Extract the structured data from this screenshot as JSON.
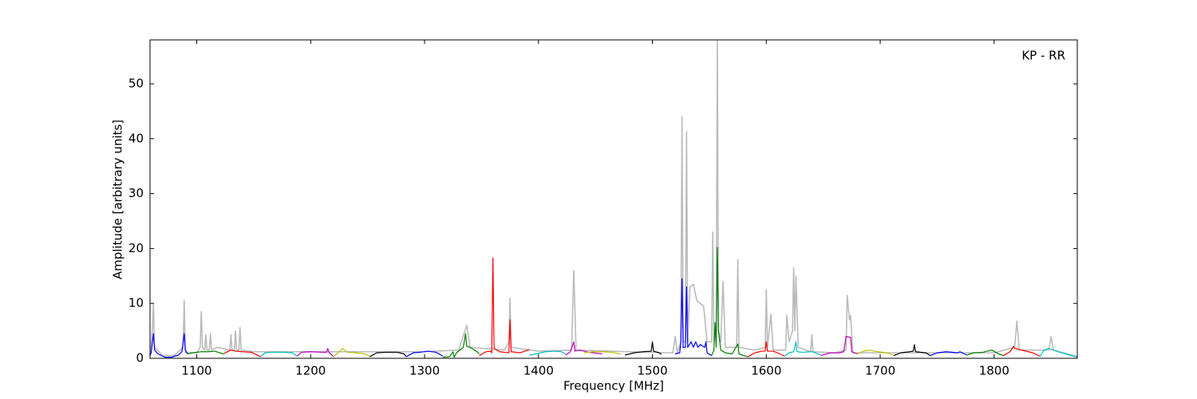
{
  "chart_data": {
    "type": "line",
    "xlabel": "Frequency [MHz]",
    "ylabel": "Amplitude [arbitrary units]",
    "annotation": "KP - RR",
    "xlim": [
      1059,
      1873
    ],
    "ylim": [
      0,
      58
    ],
    "xticks": [
      1100,
      1200,
      1300,
      1400,
      1500,
      1600,
      1700,
      1800
    ],
    "yticks": [
      0,
      10,
      20,
      30,
      40,
      50
    ],
    "series": [
      {
        "color": "#bbbbbb",
        "x": [
          1059,
          1061,
          1062,
          1063,
          1070,
          1080,
          1088,
          1089,
          1090,
          1100,
          1103,
          1104,
          1105,
          1107,
          1108,
          1109,
          1111,
          1112,
          1113,
          1118,
          1129,
          1130,
          1131,
          1133,
          1134,
          1135,
          1137,
          1138,
          1139,
          1150,
          1200,
          1250,
          1300,
          1330,
          1337,
          1340,
          1370,
          1374,
          1375,
          1376,
          1400,
          1429,
          1431,
          1433,
          1480,
          1518,
          1520,
          1522,
          1525,
          1526,
          1527,
          1529,
          1530,
          1531,
          1533,
          1536,
          1539,
          1542,
          1545,
          1548,
          1552,
          1553,
          1554,
          1556,
          1557,
          1558,
          1560,
          1562,
          1564,
          1574,
          1575,
          1576,
          1590,
          1599,
          1600,
          1601,
          1604,
          1606,
          1617,
          1618,
          1620,
          1623,
          1624,
          1625,
          1626,
          1628,
          1639,
          1640,
          1641,
          1660,
          1670,
          1671,
          1673,
          1674,
          1676,
          1700,
          1800,
          1818,
          1820,
          1822,
          1848,
          1850,
          1852,
          1873
        ],
        "values": [
          1,
          5,
          10,
          2,
          0.5,
          0.5,
          2,
          10.5,
          1,
          1,
          2,
          8.5,
          2,
          1.5,
          4.3,
          1.5,
          1.5,
          4.5,
          1.5,
          2,
          1.5,
          4.3,
          1.5,
          1.5,
          5,
          1.5,
          1.5,
          5.6,
          1.5,
          1.2,
          1.2,
          1.2,
          1.2,
          1.5,
          6,
          2,
          1.5,
          3,
          11,
          2,
          1.3,
          1.5,
          16,
          1.5,
          1.2,
          1,
          4,
          1,
          3,
          44,
          3,
          3,
          41.3,
          3,
          13,
          13.5,
          10.5,
          10,
          9.5,
          3,
          3,
          23,
          3,
          5,
          58,
          5,
          3,
          14,
          2,
          2,
          18,
          2,
          1.5,
          2,
          12.5,
          2,
          8,
          1.5,
          1.5,
          7.8,
          3,
          5,
          16.5,
          5,
          15,
          2,
          1.2,
          4.3,
          1.2,
          1,
          1.5,
          11.5,
          7,
          7.8,
          1,
          1,
          1,
          2,
          6.8,
          1.5,
          1.5,
          4,
          1.5,
          0.3
        ]
      },
      {
        "color": "#0000ff",
        "x": [
          1059,
          1060,
          1062,
          1063,
          1066,
          1072,
          1078,
          1084,
          1087,
          1089,
          1090,
          1092
        ],
        "values": [
          0.5,
          1,
          4.5,
          1.5,
          0.8,
          0.2,
          0.2,
          0.6,
          1.2,
          4.5,
          1.5,
          0.8
        ]
      },
      {
        "color": "#008000",
        "x": [
          1092,
          1096,
          1100,
          1104,
          1110,
          1116,
          1120,
          1124
        ],
        "values": [
          0.8,
          1,
          1.1,
          1.2,
          1.2,
          1.3,
          1,
          0.8
        ]
      },
      {
        "color": "#ff0000",
        "x": [
          1124,
          1128,
          1130,
          1134,
          1140,
          1148,
          1154,
          1156
        ],
        "values": [
          0.9,
          1.3,
          1.5,
          1.3,
          1.2,
          1.1,
          0.5,
          0.3
        ]
      },
      {
        "color": "#00bfbf",
        "x": [
          1156,
          1160,
          1166,
          1176,
          1184,
          1188
        ],
        "values": [
          0.3,
          1,
          1.1,
          1.1,
          1,
          0.4
        ]
      },
      {
        "color": "#bf00bf",
        "x": [
          1188,
          1192,
          1200,
          1210,
          1214,
          1215,
          1216,
          1220
        ],
        "values": [
          0.4,
          1.1,
          1.2,
          1.1,
          1.1,
          1.8,
          1.1,
          0.3
        ]
      },
      {
        "color": "#bfbf00",
        "x": [
          1220,
          1224,
          1228,
          1232,
          1240,
          1248,
          1252
        ],
        "values": [
          0.3,
          1,
          1.8,
          1.1,
          1,
          0.8,
          0.3
        ]
      },
      {
        "color": "#000000",
        "x": [
          1252,
          1258,
          1266,
          1276,
          1282,
          1284
        ],
        "values": [
          0.3,
          1,
          1.1,
          1.1,
          0.8,
          0.3
        ]
      },
      {
        "color": "#0000ff",
        "x": [
          1284,
          1290,
          1296,
          1303,
          1310,
          1316
        ],
        "values": [
          0.3,
          1,
          1.1,
          1.3,
          1.1,
          0.4
        ]
      },
      {
        "color": "#008000",
        "x": [
          1316,
          1322,
          1325,
          1326,
          1328,
          1334,
          1336,
          1337,
          1340,
          1346,
          1348
        ],
        "values": [
          0.2,
          0.3,
          1.2,
          0.2,
          1,
          2,
          4.5,
          2.2,
          2,
          1.2,
          0.8
        ]
      },
      {
        "color": "#ff0000",
        "x": [
          1348,
          1354,
          1358,
          1359,
          1360,
          1361,
          1366,
          1374,
          1375,
          1376,
          1384,
          1392
        ],
        "values": [
          0.5,
          1.2,
          1.3,
          1,
          18.3,
          1.8,
          1.2,
          1,
          7,
          1.2,
          1,
          1.6
        ]
      },
      {
        "color": "#00bfbf",
        "x": [
          1392,
          1398,
          1406,
          1414,
          1420,
          1424
        ],
        "values": [
          0.6,
          0.8,
          1.2,
          1.3,
          1.2,
          0.8
        ]
      },
      {
        "color": "#bf00bf",
        "x": [
          1424,
          1428,
          1431,
          1432,
          1436,
          1444,
          1456
        ],
        "values": [
          0.6,
          1.2,
          3,
          1.3,
          1.5,
          1.1,
          0.8
        ]
      },
      {
        "color": "#bfbf00",
        "x": [
          1440,
          1448,
          1456,
          1464,
          1472
        ],
        "values": [
          1,
          1.2,
          1.2,
          1.1,
          0.8
        ]
      },
      {
        "color": "#000000",
        "x": [
          1476,
          1484,
          1492,
          1499,
          1500,
          1501,
          1506,
          1508
        ],
        "values": [
          0.6,
          1,
          1.2,
          1.3,
          3,
          1.3,
          1,
          0.7
        ]
      },
      {
        "color": "#0000ff",
        "x": [
          1520,
          1524,
          1525,
          1526,
          1527,
          1529,
          1530,
          1531,
          1534,
          1536,
          1538,
          1540,
          1542,
          1546,
          1547,
          1548,
          1552
        ],
        "values": [
          0.8,
          1,
          3,
          14.5,
          2,
          2,
          13,
          2,
          3,
          2,
          3,
          2,
          2.5,
          2,
          3,
          1,
          0.5
        ]
      },
      {
        "color": "#008000",
        "x": [
          1552,
          1554,
          1555,
          1556,
          1557,
          1558,
          1560,
          1564,
          1570,
          1575,
          1576,
          1580,
          1584
        ],
        "values": [
          0.5,
          1.5,
          6.5,
          2,
          20.2,
          5,
          1.5,
          1,
          0.8,
          2.6,
          0.8,
          0.5,
          0.3
        ]
      },
      {
        "color": "#ff0000",
        "x": [
          1584,
          1590,
          1596,
          1599,
          1600,
          1601,
          1606,
          1612,
          1616
        ],
        "values": [
          0.3,
          1,
          1.3,
          1.3,
          3,
          1.3,
          1.3,
          0.8,
          0.4
        ]
      },
      {
        "color": "#00bfbf",
        "x": [
          1616,
          1620,
          1624,
          1626,
          1627,
          1632,
          1640,
          1648
        ],
        "values": [
          0.4,
          1,
          1.2,
          3,
          1.2,
          1.1,
          1.2,
          0.6
        ]
      },
      {
        "color": "#bf00bf",
        "x": [
          1648,
          1656,
          1664,
          1668,
          1670,
          1674,
          1675,
          1680
        ],
        "values": [
          0.5,
          1,
          1,
          1.2,
          4,
          3.8,
          1.2,
          0.8
        ]
      },
      {
        "color": "#bfbf00",
        "x": [
          1680,
          1684,
          1690,
          1698,
          1706,
          1712
        ],
        "values": [
          0.8,
          1.2,
          1.5,
          1.2,
          1,
          0.5
        ]
      },
      {
        "color": "#000000",
        "x": [
          1712,
          1718,
          1726,
          1729,
          1730,
          1731,
          1740,
          1744
        ],
        "values": [
          0.5,
          1,
          1.2,
          1.3,
          2.5,
          1.2,
          1,
          0.5
        ]
      },
      {
        "color": "#0000ff",
        "x": [
          1744,
          1750,
          1758,
          1768,
          1770,
          1776
        ],
        "values": [
          0.5,
          1,
          1.2,
          1,
          1.2,
          0.6
        ]
      },
      {
        "color": "#008000",
        "x": [
          1776,
          1782,
          1790,
          1798,
          1804,
          1808
        ],
        "values": [
          0.6,
          1,
          1.1,
          1.5,
          0.8,
          0.5
        ]
      },
      {
        "color": "#ff0000",
        "x": [
          1808,
          1814,
          1816,
          1817,
          1818,
          1824,
          1834,
          1840
        ],
        "values": [
          0.5,
          1.2,
          1.8,
          2.2,
          1.8,
          1.5,
          1,
          0.4
        ]
      },
      {
        "color": "#00bfbf",
        "x": [
          1840,
          1844,
          1848,
          1856,
          1866,
          1873
        ],
        "values": [
          0.3,
          1.5,
          1.8,
          1.2,
          0.6,
          0.2
        ]
      }
    ]
  }
}
